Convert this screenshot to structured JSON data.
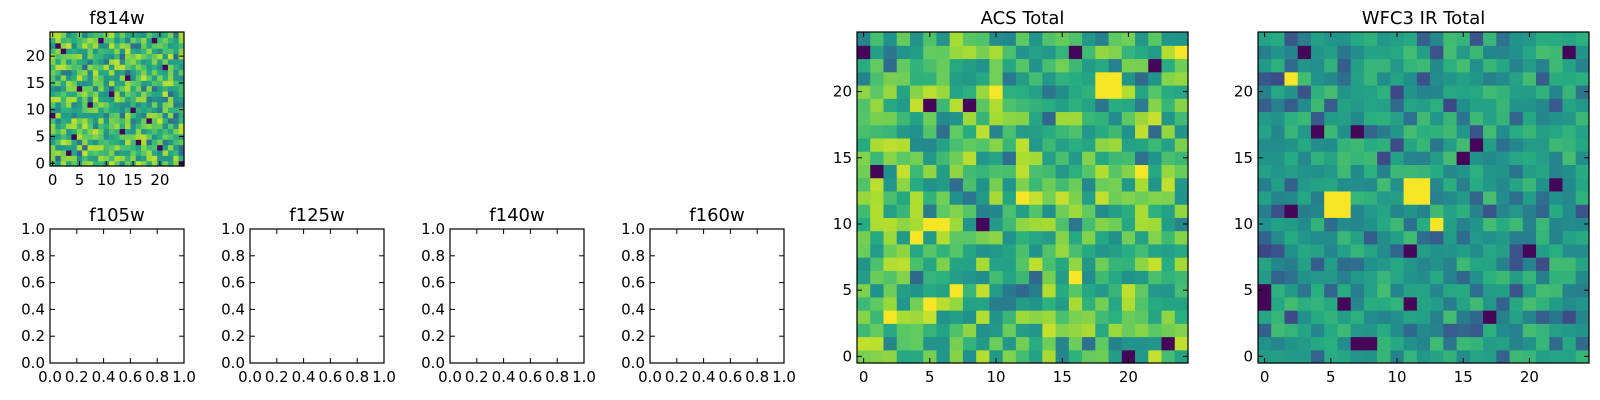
{
  "chart_data": [
    {
      "type": "heatmap",
      "title": "f814w",
      "xlim": [
        -0.5,
        24.5
      ],
      "ylim": [
        -0.5,
        24.5
      ],
      "xticks": [
        0,
        5,
        10,
        15,
        20
      ],
      "yticks": [
        0,
        5,
        10,
        15,
        20
      ],
      "xtick_labels": [
        "0",
        "5",
        "10",
        "15",
        "20"
      ],
      "ytick_labels": [
        "0",
        "5",
        "10",
        "15",
        "20"
      ],
      "grid_size": 25,
      "colormap": "viridis",
      "seed": 814,
      "profile": "bright",
      "hot_cells": [],
      "dark_cells": [
        [
          24,
          0
        ],
        [
          20,
          3
        ],
        [
          18,
          8
        ],
        [
          15,
          10
        ],
        [
          5,
          14
        ],
        [
          11,
          13
        ],
        [
          4,
          5
        ],
        [
          2,
          21
        ],
        [
          9,
          23
        ],
        [
          14,
          16
        ],
        [
          1,
          22
        ],
        [
          13,
          6
        ],
        [
          7,
          11
        ],
        [
          21,
          18
        ],
        [
          16,
          4
        ],
        [
          0,
          9
        ],
        [
          19,
          23
        ],
        [
          3,
          2
        ]
      ]
    },
    {
      "type": "heatmap",
      "title": "f105w",
      "xlim": [
        0,
        1
      ],
      "ylim": [
        0,
        1
      ],
      "xticks": [
        0,
        0.2,
        0.4,
        0.6,
        0.8,
        1.0
      ],
      "yticks": [
        0,
        0.2,
        0.4,
        0.6,
        0.8,
        1.0
      ],
      "xtick_labels": [
        "0.0",
        "0.2",
        "0.4",
        "0.6",
        "0.8",
        "1.0"
      ],
      "ytick_labels": [
        "0.0",
        "0.2",
        "0.4",
        "0.6",
        "0.8",
        "1.0"
      ],
      "empty": true
    },
    {
      "type": "heatmap",
      "title": "f125w",
      "xlim": [
        0,
        1
      ],
      "ylim": [
        0,
        1
      ],
      "xticks": [
        0,
        0.2,
        0.4,
        0.6,
        0.8,
        1.0
      ],
      "yticks": [
        0,
        0.2,
        0.4,
        0.6,
        0.8,
        1.0
      ],
      "xtick_labels": [
        "0.0",
        "0.2",
        "0.4",
        "0.6",
        "0.8",
        "1.0"
      ],
      "ytick_labels": [
        "0.0",
        "0.2",
        "0.4",
        "0.6",
        "0.8",
        "1.0"
      ],
      "empty": true
    },
    {
      "type": "heatmap",
      "title": "f140w",
      "xlim": [
        0,
        1
      ],
      "ylim": [
        0,
        1
      ],
      "xticks": [
        0,
        0.2,
        0.4,
        0.6,
        0.8,
        1.0
      ],
      "yticks": [
        0,
        0.2,
        0.4,
        0.6,
        0.8,
        1.0
      ],
      "xtick_labels": [
        "0.0",
        "0.2",
        "0.4",
        "0.6",
        "0.8",
        "1.0"
      ],
      "ytick_labels": [
        "0.0",
        "0.2",
        "0.4",
        "0.6",
        "0.8",
        "1.0"
      ],
      "empty": true
    },
    {
      "type": "heatmap",
      "title": "f160w",
      "xlim": [
        0,
        1
      ],
      "ylim": [
        0,
        1
      ],
      "xticks": [
        0,
        0.2,
        0.4,
        0.6,
        0.8,
        1.0
      ],
      "yticks": [
        0,
        0.2,
        0.4,
        0.6,
        0.8,
        1.0
      ],
      "xtick_labels": [
        "0.0",
        "0.2",
        "0.4",
        "0.6",
        "0.8",
        "1.0"
      ],
      "ytick_labels": [
        "0.0",
        "0.2",
        "0.4",
        "0.6",
        "0.8",
        "1.0"
      ],
      "empty": true
    },
    {
      "type": "heatmap",
      "title": "ACS Total",
      "xlim": [
        -0.5,
        24.5
      ],
      "ylim": [
        -0.5,
        24.5
      ],
      "xticks": [
        0,
        5,
        10,
        15,
        20
      ],
      "yticks": [
        0,
        5,
        10,
        15,
        20
      ],
      "xtick_labels": [
        "0",
        "5",
        "10",
        "15",
        "20"
      ],
      "ytick_labels": [
        "0",
        "5",
        "10",
        "15",
        "20"
      ],
      "grid_size": 25,
      "colormap": "viridis",
      "seed": 1234,
      "profile": "bright",
      "hot_cells": [
        [
          18,
          21
        ],
        [
          19,
          21
        ],
        [
          18,
          20
        ],
        [
          19,
          20
        ],
        [
          5,
          10
        ],
        [
          6,
          10
        ],
        [
          4,
          9
        ],
        [
          5,
          4
        ],
        [
          7,
          5
        ],
        [
          16,
          6
        ],
        [
          21,
          14
        ],
        [
          10,
          20
        ],
        [
          24,
          23
        ],
        [
          2,
          3
        ],
        [
          12,
          12
        ]
      ],
      "dark_cells": [
        [
          0,
          23
        ],
        [
          16,
          23
        ],
        [
          22,
          22
        ],
        [
          5,
          19
        ],
        [
          1,
          14
        ],
        [
          9,
          10
        ],
        [
          23,
          1
        ],
        [
          8,
          19
        ],
        [
          20,
          0
        ]
      ]
    },
    {
      "type": "heatmap",
      "title": "WFC3 IR Total",
      "xlim": [
        -0.5,
        24.5
      ],
      "ylim": [
        -0.5,
        24.5
      ],
      "xticks": [
        0,
        5,
        10,
        15,
        20
      ],
      "yticks": [
        0,
        5,
        10,
        15,
        20
      ],
      "xtick_labels": [
        "0",
        "5",
        "10",
        "15",
        "20"
      ],
      "ytick_labels": [
        "0",
        "5",
        "10",
        "15",
        "20"
      ],
      "grid_size": 25,
      "colormap": "viridis",
      "seed": 3160,
      "profile": "mid",
      "hot_cells": [
        [
          5,
          11
        ],
        [
          6,
          11
        ],
        [
          5,
          12
        ],
        [
          6,
          12
        ],
        [
          11,
          12
        ],
        [
          12,
          12
        ],
        [
          11,
          13
        ],
        [
          12,
          13
        ],
        [
          2,
          21
        ],
        [
          13,
          10
        ]
      ],
      "dark_cells": [
        [
          3,
          23
        ],
        [
          23,
          23
        ],
        [
          4,
          17
        ],
        [
          7,
          17
        ],
        [
          16,
          16
        ],
        [
          15,
          15
        ],
        [
          0,
          5
        ],
        [
          0,
          4
        ],
        [
          7,
          1
        ],
        [
          8,
          1
        ],
        [
          11,
          8
        ],
        [
          20,
          8
        ],
        [
          2,
          11
        ],
        [
          11,
          4
        ],
        [
          17,
          3
        ],
        [
          6,
          4
        ],
        [
          22,
          13
        ]
      ]
    }
  ]
}
